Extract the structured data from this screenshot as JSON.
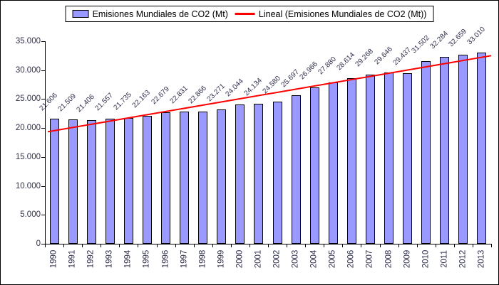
{
  "legend": {
    "series_label": "Emisiones Mundiales de CO2 (Mt)",
    "trend_label": "Lineal (Emisiones Mundiales de CO2 (Mt))"
  },
  "chart_data": {
    "type": "bar",
    "title": "",
    "series_name": "Emisiones Mundiales de CO2 (Mt)",
    "categories": [
      "1990",
      "1991",
      "1992",
      "1993",
      "1994",
      "1995",
      "1996",
      "1997",
      "1998",
      "1999",
      "2000",
      "2001",
      "2002",
      "2003",
      "2004",
      "2005",
      "2006",
      "2007",
      "2008",
      "2009",
      "2010",
      "2011",
      "2012",
      "2013"
    ],
    "values": [
      21606,
      21509,
      21406,
      21557,
      21735,
      22163,
      22679,
      22831,
      22866,
      23271,
      24044,
      24134,
      24580,
      25697,
      26966,
      27880,
      28614,
      29268,
      29646,
      29437,
      31502,
      32284,
      32659,
      33010
    ],
    "value_labels": [
      "21.606",
      "21.509",
      "21.406",
      "21.557",
      "21.735",
      "22.163",
      "22.679",
      "22.831",
      "22.866",
      "23.271",
      "24.044",
      "24.134",
      "24.580",
      "25.697",
      "26.966",
      "27.880",
      "28.614",
      "29.268",
      "29.646",
      "29.437",
      "31.502",
      "32.284",
      "32.659",
      "33.010"
    ],
    "xlabel": "",
    "ylabel": "",
    "ylim": [
      0,
      35000
    ],
    "ytick_step": 5000,
    "ytick_labels": [
      "0",
      "5.000",
      "10.000",
      "15.000",
      "20.000",
      "25.000",
      "30.000",
      "35.000"
    ],
    "grid": false,
    "legend_position": "top-center",
    "bar_color": "#9999FF",
    "bar_border_color": "#000000",
    "trendline": {
      "type": "linear",
      "name": "Lineal (Emisiones Mundiales de CO2 (Mt))",
      "color": "#FF0000"
    }
  }
}
